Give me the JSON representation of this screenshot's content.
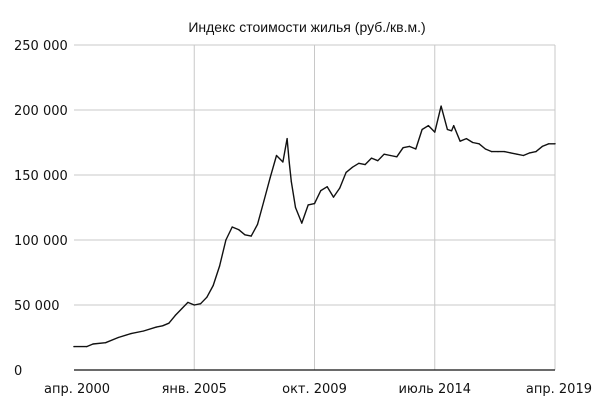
{
  "chart_data": {
    "type": "line",
    "title": "Индекс стоимости жилья (руб./кв.м.)",
    "xlabel": "",
    "ylabel": "",
    "ylim": [
      0,
      250000
    ],
    "xlim": [
      "2000-04",
      "2019-04"
    ],
    "grid": true,
    "y_ticks": [
      {
        "value": 0,
        "label": "0"
      },
      {
        "value": 50000,
        "label": "50 000"
      },
      {
        "value": 100000,
        "label": "100 000"
      },
      {
        "value": 150000,
        "label": "150 000"
      },
      {
        "value": 200000,
        "label": "200 000"
      },
      {
        "value": 250000,
        "label": "250 000"
      }
    ],
    "x_ticks": [
      {
        "value": "2000-04",
        "label": "апр. 2000"
      },
      {
        "value": "2005-01",
        "label": "янв. 2005"
      },
      {
        "value": "2009-10",
        "label": "окт. 2009"
      },
      {
        "value": "2014-07",
        "label": "июль 2014"
      },
      {
        "value": "2019-04",
        "label": "апр. 2019"
      }
    ],
    "series": [
      {
        "x": [
          "2000-04",
          "2000-10",
          "2001-01",
          "2001-07",
          "2002-01",
          "2002-07",
          "2003-01",
          "2003-07",
          "2003-10",
          "2004-01",
          "2004-04",
          "2004-07",
          "2004-10",
          "2005-01",
          "2005-04",
          "2005-07",
          "2005-10",
          "2006-01",
          "2006-04",
          "2006-07",
          "2006-10",
          "2007-01",
          "2007-04",
          "2007-07",
          "2007-10",
          "2008-01",
          "2008-04",
          "2008-07",
          "2008-09",
          "2008-10",
          "2008-11",
          "2009-01",
          "2009-04",
          "2009-07",
          "2009-10",
          "2010-01",
          "2010-04",
          "2010-07",
          "2010-10",
          "2011-01",
          "2011-04",
          "2011-07",
          "2011-10",
          "2012-01",
          "2012-04",
          "2012-07",
          "2012-10",
          "2013-01",
          "2013-04",
          "2013-07",
          "2013-10",
          "2014-01",
          "2014-04",
          "2014-07",
          "2014-10",
          "2015-01",
          "2015-03",
          "2015-04",
          "2015-07",
          "2015-10",
          "2016-01",
          "2016-04",
          "2016-07",
          "2016-10",
          "2017-01",
          "2017-04",
          "2017-07",
          "2017-10",
          "2018-01",
          "2018-04",
          "2018-07",
          "2018-10",
          "2019-01",
          "2019-04"
        ],
        "values": [
          18000,
          18000,
          20000,
          21000,
          25000,
          28000,
          30000,
          33000,
          34000,
          36000,
          42000,
          47000,
          52000,
          50000,
          51000,
          56000,
          65000,
          80000,
          100000,
          110000,
          108000,
          104000,
          103000,
          112000,
          130000,
          148000,
          165000,
          160000,
          178000,
          160000,
          145000,
          125000,
          113000,
          127000,
          128000,
          138000,
          141000,
          133000,
          140000,
          152000,
          156000,
          159000,
          158000,
          163000,
          161000,
          166000,
          165000,
          164000,
          171000,
          172000,
          170000,
          185000,
          188000,
          183000,
          203000,
          185000,
          184000,
          188000,
          176000,
          178000,
          175000,
          174000,
          170000,
          168000,
          168000,
          168000,
          167000,
          166000,
          165000,
          167000,
          168000,
          172000,
          174000,
          174000
        ]
      }
    ]
  }
}
